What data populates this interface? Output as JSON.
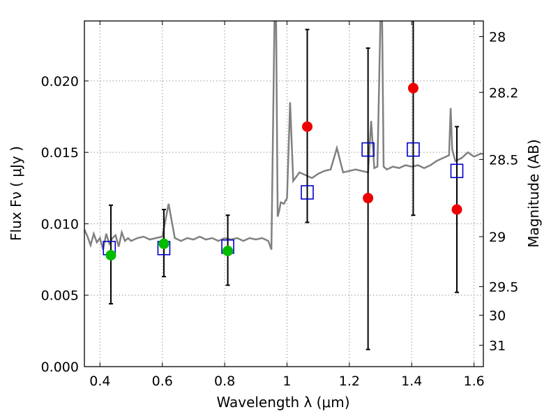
{
  "chart_data": {
    "type": "scatter",
    "xlabel": "Wavelength  λ (μm)",
    "ylabel": "Flux  Fν  ( μJy )",
    "ylabel_right": "Magnitude (AB)",
    "xlim": [
      0.35,
      1.63
    ],
    "ylim": [
      0.0,
      0.0242
    ],
    "grid": true,
    "x_ticks": [
      0.4,
      0.6,
      0.8,
      1.0,
      1.2,
      1.4,
      1.6
    ],
    "x_tick_labels": [
      "0.4",
      "0.6",
      "0.8",
      "1",
      "1.2",
      "1.4",
      "1.6"
    ],
    "y_ticks": [
      0.0,
      0.005,
      0.01,
      0.015,
      0.02
    ],
    "y_tick_labels": [
      "0.000",
      "0.005",
      "0.010",
      "0.015",
      "0.020"
    ],
    "right_ticks": [
      {
        "label": "28",
        "flux": 0.0231
      },
      {
        "label": "28.2",
        "flux": 0.0192
      },
      {
        "label": "28.5",
        "flux": 0.0145
      },
      {
        "label": "29",
        "flux": 0.0091
      },
      {
        "label": "29.5",
        "flux": 0.0056
      },
      {
        "label": "30",
        "flux": 0.0036
      },
      {
        "label": "31",
        "flux": 0.0015
      }
    ],
    "colors": {
      "spectrum": "#808080",
      "model_squares": "#0000cc",
      "green_points": "#00bb00",
      "red_points": "#ee0000",
      "errorbars": "#000000",
      "grid": "#999999"
    },
    "spectrum": {
      "x": [
        0.35,
        0.36,
        0.37,
        0.38,
        0.39,
        0.4,
        0.41,
        0.42,
        0.43,
        0.44,
        0.45,
        0.46,
        0.47,
        0.48,
        0.49,
        0.5,
        0.52,
        0.54,
        0.56,
        0.58,
        0.6,
        0.62,
        0.64,
        0.66,
        0.68,
        0.7,
        0.72,
        0.74,
        0.76,
        0.78,
        0.8,
        0.82,
        0.84,
        0.86,
        0.88,
        0.9,
        0.92,
        0.94,
        0.95,
        0.96,
        0.965,
        0.97,
        0.975,
        0.98,
        0.99,
        1.0,
        1.01,
        1.02,
        1.03,
        1.04,
        1.05,
        1.06,
        1.08,
        1.1,
        1.12,
        1.14,
        1.16,
        1.18,
        1.2,
        1.22,
        1.24,
        1.26,
        1.27,
        1.28,
        1.29,
        1.3,
        1.305,
        1.31,
        1.32,
        1.34,
        1.36,
        1.38,
        1.4,
        1.42,
        1.44,
        1.46,
        1.48,
        1.5,
        1.52,
        1.525,
        1.53,
        1.54,
        1.56,
        1.58,
        1.6,
        1.62,
        1.63
      ],
      "y": [
        0.0096,
        0.0091,
        0.0085,
        0.0093,
        0.0087,
        0.009,
        0.0082,
        0.0093,
        0.0086,
        0.009,
        0.0092,
        0.0084,
        0.0094,
        0.0088,
        0.009,
        0.0088,
        0.009,
        0.0091,
        0.0089,
        0.009,
        0.0091,
        0.0114,
        0.009,
        0.0088,
        0.009,
        0.0089,
        0.0091,
        0.0089,
        0.009,
        0.0088,
        0.009,
        0.0089,
        0.009,
        0.0088,
        0.009,
        0.0089,
        0.009,
        0.0088,
        0.0082,
        0.0245,
        0.0245,
        0.0105,
        0.0109,
        0.0115,
        0.0114,
        0.0118,
        0.0185,
        0.013,
        0.0133,
        0.0136,
        0.0135,
        0.0134,
        0.0132,
        0.0135,
        0.0137,
        0.0138,
        0.0153,
        0.0136,
        0.0137,
        0.0138,
        0.0137,
        0.0136,
        0.0172,
        0.0139,
        0.014,
        0.0245,
        0.0245,
        0.014,
        0.0138,
        0.014,
        0.0139,
        0.0141,
        0.014,
        0.0141,
        0.0139,
        0.0141,
        0.0144,
        0.0146,
        0.0148,
        0.0181,
        0.0152,
        0.0144,
        0.0146,
        0.015,
        0.0147,
        0.0149,
        0.0149
      ]
    },
    "series": [
      {
        "x": [
          0.43,
          0.605,
          0.81,
          1.065,
          1.26,
          1.405,
          1.545
        ],
        "values": [
          0.0083,
          0.0083,
          0.0084,
          0.0122,
          0.0152,
          0.0152,
          0.0137
        ],
        "marker": "open-square"
      },
      {
        "x": [
          0.435,
          0.605,
          0.81
        ],
        "values": [
          0.0078,
          0.0086,
          0.0081
        ],
        "marker": "filled-circle"
      },
      {
        "x": [
          1.065,
          1.26,
          1.405,
          1.545
        ],
        "values": [
          0.0168,
          0.0118,
          0.0195,
          0.011
        ],
        "marker": "filled-circle"
      }
    ],
    "errorbars": [
      {
        "x": 0.435,
        "low": 0.0044,
        "high": 0.0113
      },
      {
        "x": 0.605,
        "low": 0.0063,
        "high": 0.011
      },
      {
        "x": 0.81,
        "low": 0.0057,
        "high": 0.0106
      },
      {
        "x": 1.065,
        "low": 0.0101,
        "high": 0.0236
      },
      {
        "x": 1.26,
        "low": 0.0012,
        "high": 0.0223
      },
      {
        "x": 1.405,
        "low": 0.0106,
        "high": 0.0245
      },
      {
        "x": 1.545,
        "low": 0.0052,
        "high": 0.0168
      }
    ]
  }
}
